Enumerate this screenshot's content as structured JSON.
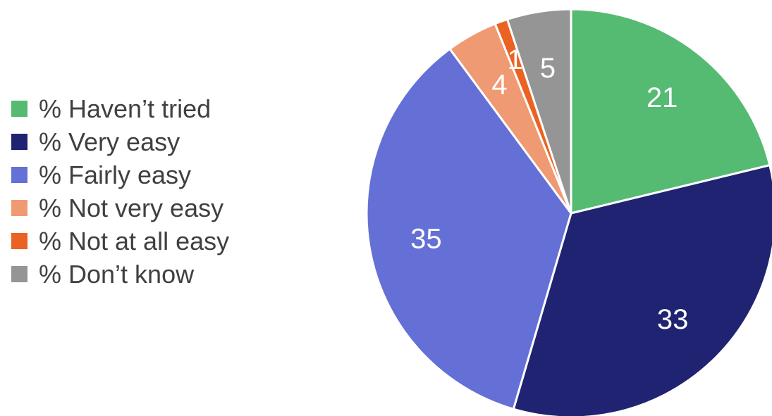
{
  "chart_data": {
    "type": "pie",
    "categories": [
      "% Haven’t tried",
      "% Very easy",
      "% Fairly easy",
      "% Not very easy",
      "% Not at all easy",
      "% Don’t know"
    ],
    "values": [
      21,
      33,
      35,
      4,
      1,
      5
    ],
    "data_labels": [
      "21",
      "33",
      "35",
      "4",
      "1",
      "5"
    ],
    "colors": [
      "#55bb73",
      "#1f2371",
      "#6570d6",
      "#ef9a72",
      "#ea6322",
      "#959595"
    ],
    "legend_position": "left",
    "start_angle": "12 o'clock, clockwise"
  }
}
